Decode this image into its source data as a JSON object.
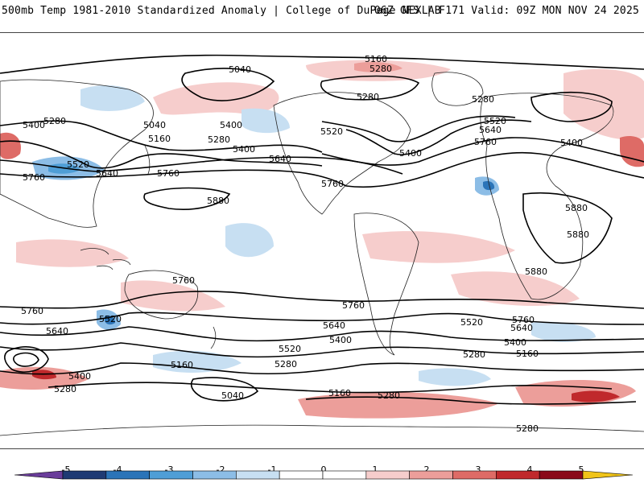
{
  "header": {
    "title": "500mb Temp 1981-2010 Standardized Anomaly | College of DuPage NEXLAB",
    "run_info": "06Z GFS | F171 Valid: 09Z MON NOV 24 2025"
  },
  "map": {
    "field": "500mb temperature standardized anomaly",
    "contour_variable": "500mb geopotential height (dam)",
    "contour_labels": [
      {
        "text": "5160"
      },
      {
        "text": "5040"
      },
      {
        "text": "5280"
      },
      {
        "text": "5280"
      },
      {
        "text": "5280"
      },
      {
        "text": "5400"
      },
      {
        "text": "5280"
      },
      {
        "text": "5040"
      },
      {
        "text": "5400"
      },
      {
        "text": "5160"
      },
      {
        "text": "5280"
      },
      {
        "text": "5400"
      },
      {
        "text": "5520"
      },
      {
        "text": "5640"
      },
      {
        "text": "5760"
      },
      {
        "text": "5520"
      },
      {
        "text": "5640"
      },
      {
        "text": "5760"
      },
      {
        "text": "5880"
      },
      {
        "text": "5760"
      },
      {
        "text": "5520"
      },
      {
        "text": "5400"
      },
      {
        "text": "5520"
      },
      {
        "text": "5640"
      },
      {
        "text": "5760"
      },
      {
        "text": "5400"
      },
      {
        "text": "5880"
      },
      {
        "text": "5880"
      },
      {
        "text": "5880"
      },
      {
        "text": "5760"
      },
      {
        "text": "5760"
      },
      {
        "text": "5640"
      },
      {
        "text": "5520"
      },
      {
        "text": "5760"
      },
      {
        "text": "5640"
      },
      {
        "text": "5520"
      },
      {
        "text": "5400"
      },
      {
        "text": "5280"
      },
      {
        "text": "5160"
      },
      {
        "text": "5040"
      },
      {
        "text": "5400"
      },
      {
        "text": "5280"
      },
      {
        "text": "5160"
      },
      {
        "text": "5520"
      },
      {
        "text": "5760"
      },
      {
        "text": "5640"
      },
      {
        "text": "5400"
      },
      {
        "text": "5280"
      },
      {
        "text": "5160"
      },
      {
        "text": "5280"
      },
      {
        "text": "5280"
      }
    ]
  },
  "legend": {
    "tick_labels": [
      "-5",
      "-4",
      "-3",
      "-2",
      "-1",
      "0",
      "1",
      "2",
      "3",
      "4",
      "5"
    ],
    "bins": [
      {
        "color": "#6a3d9a"
      },
      {
        "color": "#1f3a73"
      },
      {
        "color": "#2b74b8"
      },
      {
        "color": "#4f9ed6"
      },
      {
        "color": "#8cbde6"
      },
      {
        "color": "#c7dff2"
      },
      {
        "color": "#ffffff"
      },
      {
        "color": "#ffffff"
      },
      {
        "color": "#f6cdcc"
      },
      {
        "color": "#ec9e9a"
      },
      {
        "color": "#de6b66"
      },
      {
        "color": "#c0292c"
      },
      {
        "color": "#8a0a1a"
      },
      {
        "color": "#f0c419"
      }
    ]
  }
}
